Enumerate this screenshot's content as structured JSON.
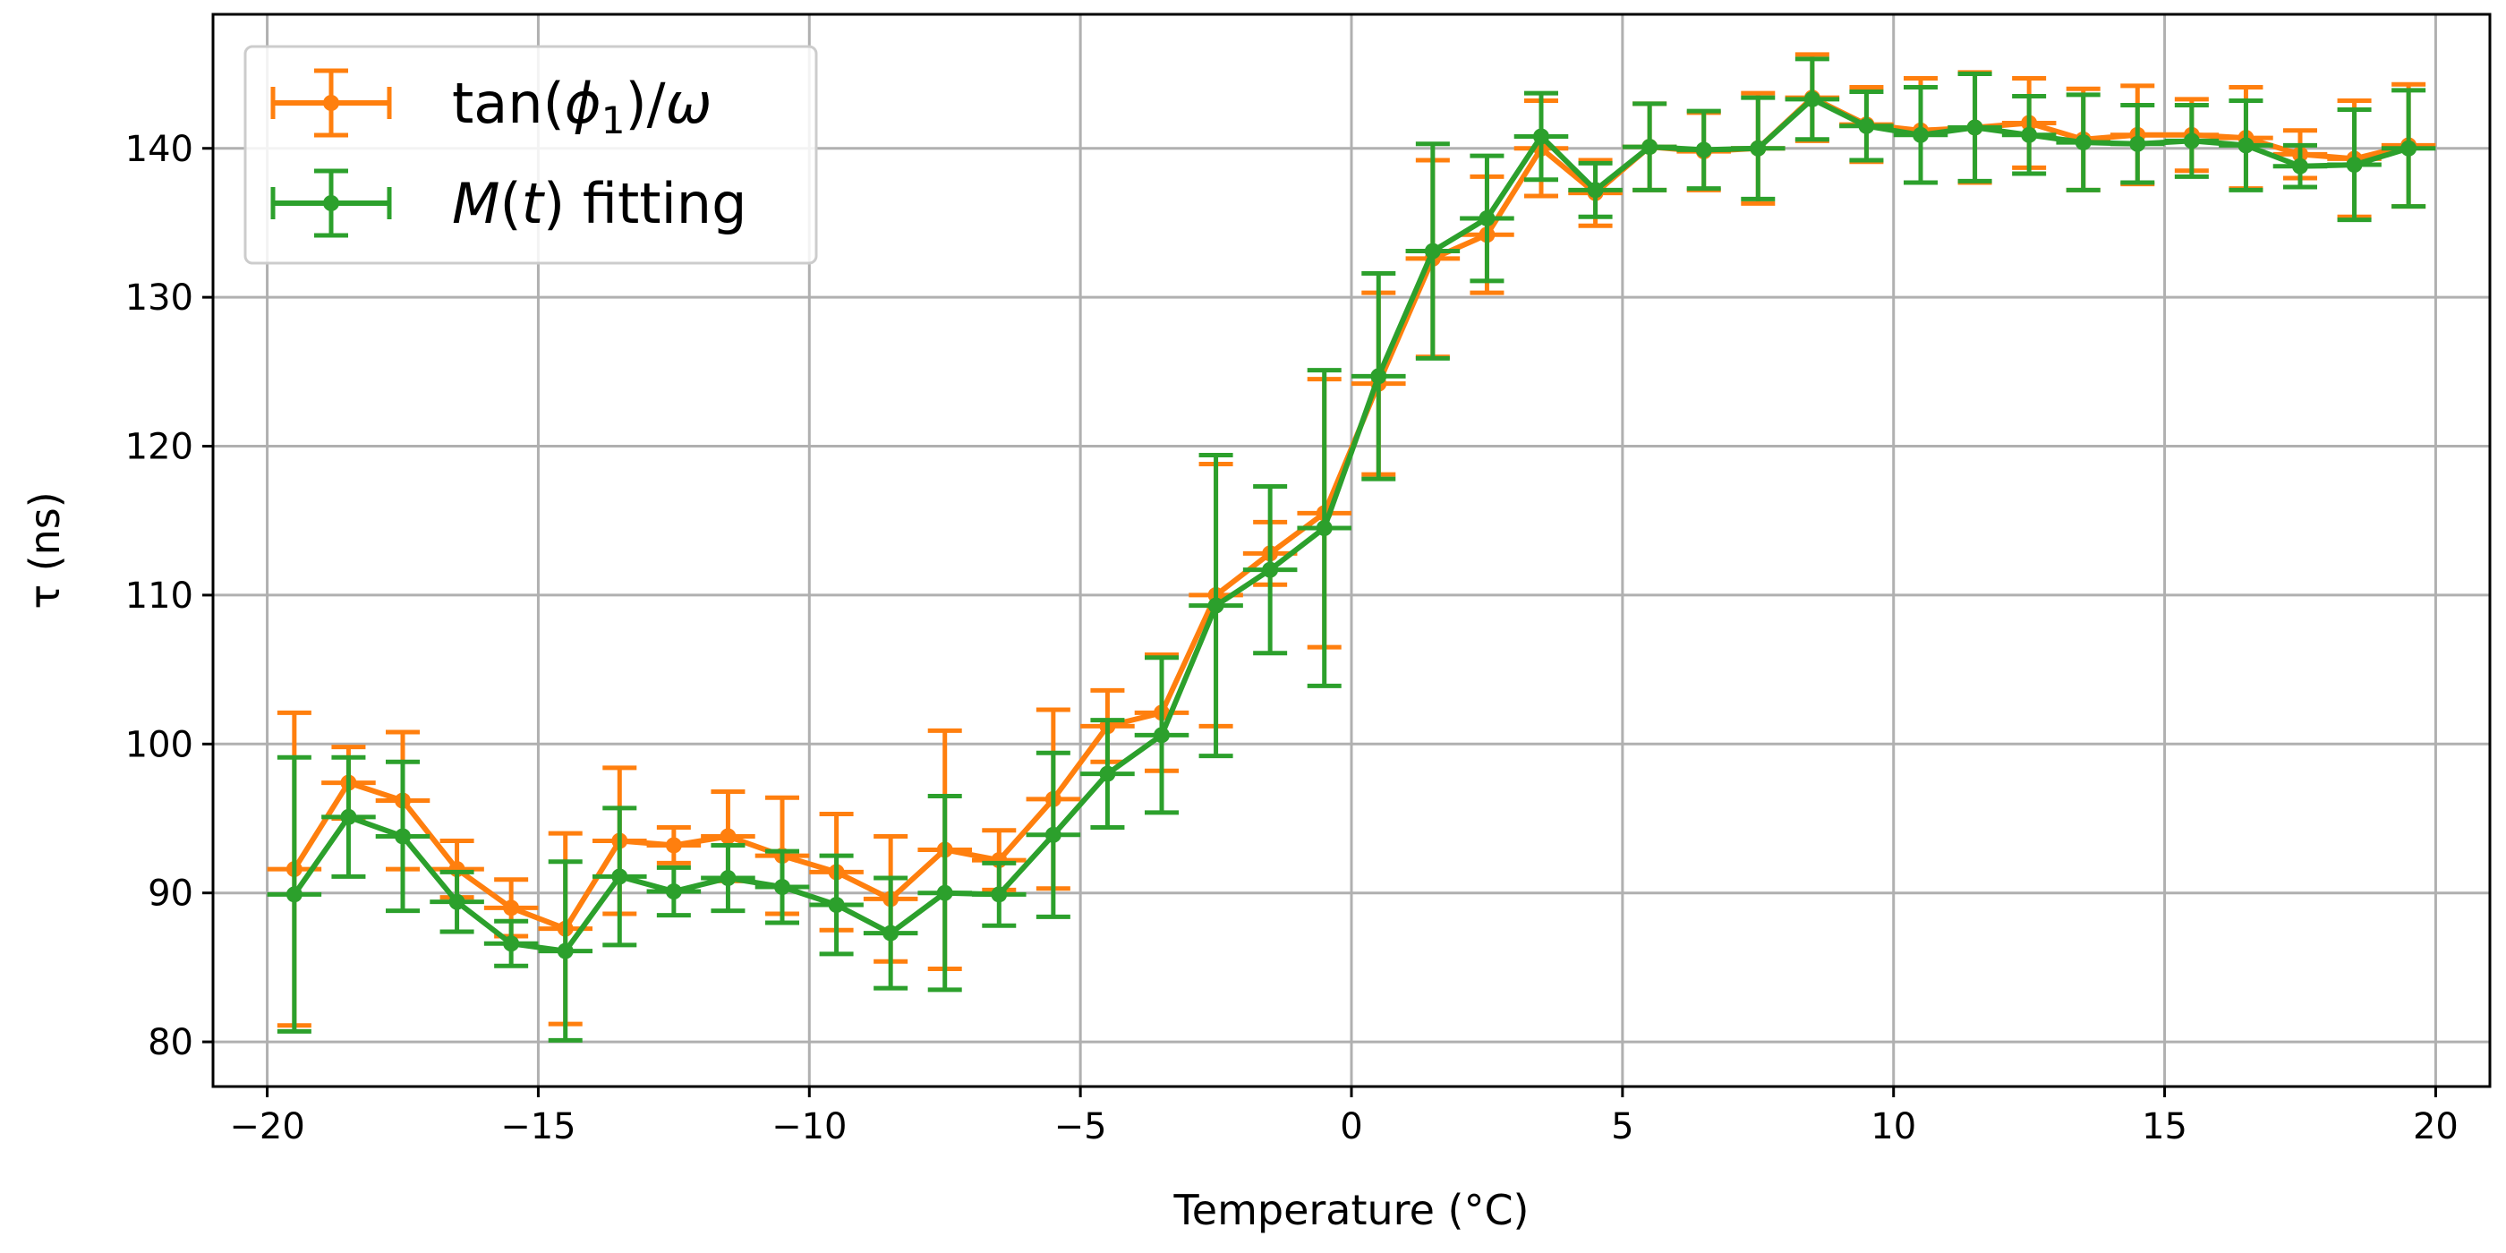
{
  "chart_data": {
    "type": "line",
    "title": "",
    "xlabel": "Temperature (°C)",
    "ylabel": "τ (ns)",
    "xlim": [
      -21,
      21
    ],
    "ylim": [
      77,
      149
    ],
    "xticks": [
      -20,
      -15,
      -10,
      -5,
      0,
      5,
      10,
      15,
      20
    ],
    "yticks": [
      80,
      90,
      100,
      110,
      120,
      130,
      140
    ],
    "xtick_labels": [
      "−20",
      "−15",
      "−10",
      "−5",
      "0",
      "5",
      "10",
      "15",
      "20"
    ],
    "ytick_labels": [
      "80",
      "90",
      "100",
      "110",
      "120",
      "130",
      "140"
    ],
    "grid": true,
    "legend_position": "top-left",
    "x": [
      -19.5,
      -18.5,
      -17.5,
      -16.5,
      -15.5,
      -14.5,
      -13.5,
      -12.5,
      -11.5,
      -10.5,
      -9.5,
      -8.5,
      -7.5,
      -6.5,
      -5.5,
      -4.5,
      -3.5,
      -2.5,
      -1.5,
      -0.5,
      0.5,
      1.5,
      2.5,
      3.5,
      4.5,
      5.5,
      6.5,
      7.5,
      8.5,
      9.5,
      10.5,
      11.5,
      12.5,
      13.5,
      14.5,
      15.5,
      16.5,
      17.5,
      18.5,
      19.5
    ],
    "x_err": 0.5,
    "series": [
      {
        "name_parts": [
          "tan(",
          "ϕ",
          "1",
          ")/",
          "ω"
        ],
        "color": "#ff7f0e",
        "values": [
          91.6,
          97.4,
          96.2,
          91.6,
          89.0,
          87.6,
          93.5,
          93.2,
          93.8,
          92.5,
          91.4,
          89.6,
          92.9,
          92.2,
          96.3,
          101.2,
          102.1,
          110.0,
          112.8,
          115.5,
          124.2,
          132.6,
          134.2,
          140.0,
          137.0,
          140.1,
          139.8,
          140.0,
          143.4,
          141.6,
          141.2,
          141.4,
          141.7,
          140.6,
          140.9,
          140.9,
          140.7,
          139.6,
          139.3,
          140.2
        ],
        "errors": [
          10.5,
          2.4,
          4.6,
          1.9,
          1.9,
          6.4,
          4.9,
          1.2,
          3.0,
          3.9,
          3.9,
          4.2,
          8.0,
          2.0,
          6.0,
          2.4,
          3.9,
          8.8,
          2.1,
          9.0,
          6.1,
          6.6,
          3.9,
          3.2,
          2.2,
          2.9,
          2.6,
          3.7,
          2.9,
          2.5,
          3.5,
          3.7,
          3.0,
          3.4,
          3.3,
          2.4,
          3.4,
          1.6,
          3.9,
          4.1
        ]
      },
      {
        "name_parts": [
          "M",
          "(",
          "t",
          ") fitting"
        ],
        "color": "#2ca02c",
        "values": [
          89.9,
          95.1,
          93.8,
          89.4,
          86.6,
          86.1,
          91.1,
          90.1,
          91.0,
          90.4,
          89.2,
          87.3,
          90.0,
          89.9,
          93.9,
          98.0,
          100.6,
          109.3,
          111.7,
          114.5,
          124.7,
          133.1,
          135.3,
          140.8,
          137.2,
          140.1,
          139.9,
          140.0,
          143.3,
          141.5,
          140.9,
          141.4,
          140.9,
          140.4,
          140.3,
          140.5,
          140.2,
          138.8,
          138.9,
          140.0
        ],
        "errors": [
          9.2,
          4.0,
          5.0,
          2.0,
          1.5,
          6.0,
          4.6,
          1.6,
          2.2,
          2.4,
          3.3,
          3.7,
          6.5,
          2.1,
          5.5,
          3.6,
          5.2,
          10.1,
          5.6,
          10.6,
          6.9,
          7.2,
          4.2,
          2.9,
          1.8,
          2.9,
          2.6,
          3.4,
          2.7,
          2.3,
          3.2,
          3.6,
          2.6,
          3.2,
          2.6,
          2.4,
          3.0,
          1.4,
          3.7,
          3.9
        ]
      }
    ]
  }
}
